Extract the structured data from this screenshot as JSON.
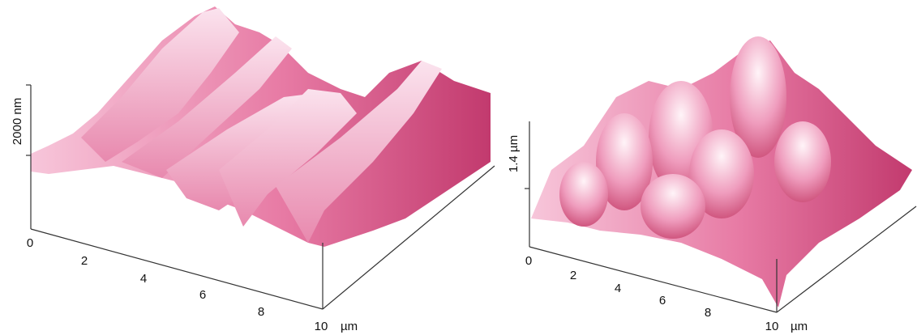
{
  "panels": [
    {
      "z_label": "2000 nm",
      "x_ticks": [
        "0",
        "2",
        "4",
        "6",
        "8",
        "10"
      ],
      "unit": "µm"
    },
    {
      "z_label": "1.4 µm",
      "x_ticks": [
        "0",
        "2",
        "4",
        "6",
        "8",
        "10"
      ],
      "unit": "µm"
    }
  ]
}
